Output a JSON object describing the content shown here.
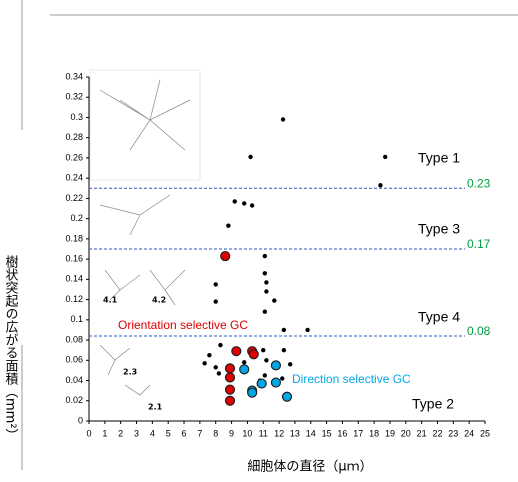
{
  "chart_data": {
    "type": "scatter",
    "y_label": "樹状突起の広がる面積（mm²）",
    "x_label": "細胞体の直径（μｍ）",
    "xlim": [
      0,
      25
    ],
    "ylim": [
      0,
      0.34
    ],
    "xticks": [
      0,
      1,
      2,
      3,
      4,
      5,
      6,
      7,
      8,
      9,
      10,
      11,
      12,
      13,
      14,
      15,
      16,
      17,
      18,
      19,
      20,
      21,
      22,
      23,
      24,
      25
    ],
    "yticks": [
      0,
      0.02,
      0.04,
      0.06,
      0.08,
      0.1,
      0.12,
      0.14,
      0.16,
      0.18,
      0.2,
      0.22,
      0.24,
      0.26,
      0.28,
      0.3,
      0.32,
      0.34
    ],
    "thresholds": [
      0.23,
      0.17,
      {
        "value": 0.084,
        "label": "0.08"
      }
    ],
    "threshold_color": "#2e55c8",
    "threshold_label_color": "#00a040",
    "type_labels": [
      "Type 1",
      "Type 3",
      "Type 4",
      "Type 2"
    ],
    "inset_labels": [
      "4.1",
      "4.2",
      "2.3",
      "2.1"
    ],
    "series": [
      {
        "color": "#000000",
        "x": [
          10.2,
          12.25,
          18.7,
          18.4,
          9.2,
          9.8,
          10.3,
          8.8,
          11.1,
          11.1,
          11.2,
          11.2,
          11.7,
          8.0,
          8.0,
          11.1,
          12.3,
          13.8,
          8.3,
          7.6,
          7.3,
          8.0,
          8.2,
          9.8,
          11.0,
          11.2,
          12.3,
          12.7,
          10.8,
          11.1,
          12.2
        ],
        "values": [
          0.261,
          0.298,
          0.261,
          0.233,
          0.217,
          0.215,
          0.213,
          0.193,
          0.163,
          0.146,
          0.137,
          0.128,
          0.119,
          0.135,
          0.118,
          0.108,
          0.09,
          0.09,
          0.075,
          0.065,
          0.057,
          0.053,
          0.047,
          0.058,
          0.07,
          0.06,
          0.07,
          0.056,
          0.04,
          0.045,
          0.042
        ]
      },
      {
        "name": "Orientation selective GC",
        "color": "#e00000",
        "x": [
          8.6,
          9.3,
          10.3,
          10.4,
          8.9,
          8.9,
          8.9,
          8.9
        ],
        "values": [
          0.163,
          0.069,
          0.069,
          0.066,
          0.052,
          0.043,
          0.031,
          0.02
        ]
      },
      {
        "name": "Direction selective GC",
        "color": "#00a8e8",
        "x": [
          9.8,
          10.3,
          11.8,
          10.9,
          11.8,
          12.5,
          10.3
        ],
        "values": [
          0.051,
          0.03,
          0.055,
          0.037,
          0.038,
          0.024,
          0.028
        ]
      }
    ]
  }
}
